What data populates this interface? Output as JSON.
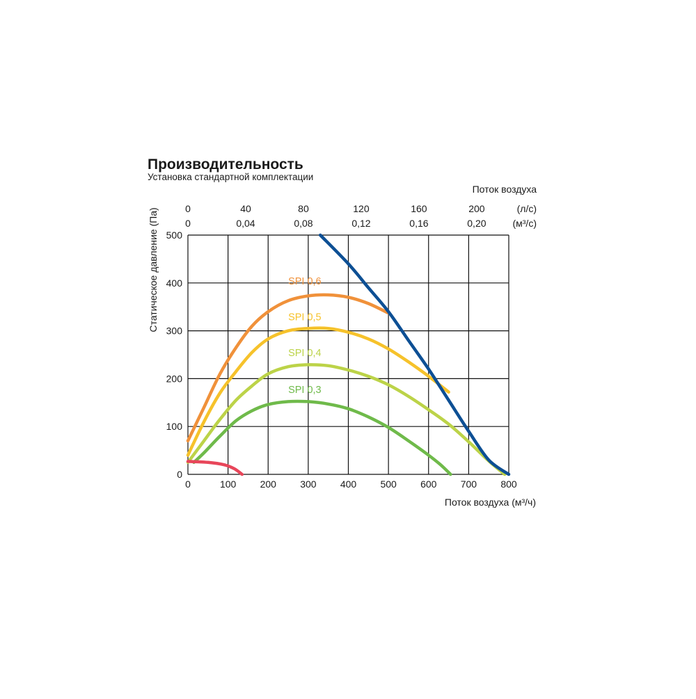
{
  "chart_data": {
    "type": "line",
    "title": "Производительность",
    "subtitle": "Установка стандартной комплектации",
    "xlabel": "Поток воздуха (м³/ч)",
    "ylabel": "Статическое давление (Па)",
    "top_axis_title": "Поток воздуха",
    "x_ticks": [
      "0",
      "100",
      "200",
      "300",
      "400",
      "500",
      "600",
      "700",
      "800"
    ],
    "y_ticks": [
      "0",
      "100",
      "200",
      "300",
      "400",
      "500"
    ],
    "xlim": [
      0,
      800
    ],
    "ylim": [
      0,
      500
    ],
    "top_axis_ls": {
      "unit": "(л/с)",
      "ticks": [
        {
          "label": "0",
          "value": 0
        },
        {
          "label": "40",
          "value": 40
        },
        {
          "label": "80",
          "value": 80
        },
        {
          "label": "120",
          "value": 120
        },
        {
          "label": "160",
          "value": 160
        },
        {
          "label": "200",
          "value": 200
        }
      ]
    },
    "top_axis_m3s": {
      "unit": "(м³/с)",
      "ticks": [
        {
          "label": "0",
          "value": 0
        },
        {
          "label": "0,04",
          "value": 0.04
        },
        {
          "label": "0,08",
          "value": 0.08
        },
        {
          "label": "0,12",
          "value": 0.12
        },
        {
          "label": "0,16",
          "value": 0.16
        },
        {
          "label": "0,20",
          "value": 0.2
        }
      ]
    },
    "grid": true,
    "series": [
      {
        "name": "",
        "color": "#0d4f94",
        "points": [
          [
            330,
            500
          ],
          [
            400,
            440
          ],
          [
            450,
            390
          ],
          [
            500,
            340
          ],
          [
            550,
            280
          ],
          [
            600,
            220
          ],
          [
            650,
            155
          ],
          [
            700,
            90
          ],
          [
            750,
            30
          ],
          [
            800,
            0
          ]
        ]
      },
      {
        "name": "",
        "color": "#e8465a",
        "points": [
          [
            0,
            27
          ],
          [
            50,
            25
          ],
          [
            90,
            20
          ],
          [
            115,
            12
          ],
          [
            135,
            0
          ]
        ]
      },
      {
        "name": "SPI 0,6",
        "color": "#f0913a",
        "label_at": [
          250,
          397
        ],
        "points": [
          [
            0,
            70
          ],
          [
            40,
            140
          ],
          [
            80,
            210
          ],
          [
            120,
            265
          ],
          [
            160,
            310
          ],
          [
            200,
            340
          ],
          [
            250,
            363
          ],
          [
            300,
            373
          ],
          [
            350,
            375
          ],
          [
            400,
            370
          ],
          [
            450,
            357
          ],
          [
            500,
            337
          ]
        ]
      },
      {
        "name": "SPI 0,5",
        "color": "#f6c22b",
        "label_at": [
          250,
          322
        ],
        "points": [
          [
            0,
            40
          ],
          [
            40,
            110
          ],
          [
            80,
            170
          ],
          [
            120,
            215
          ],
          [
            160,
            255
          ],
          [
            200,
            283
          ],
          [
            250,
            300
          ],
          [
            300,
            305
          ],
          [
            350,
            305
          ],
          [
            400,
            297
          ],
          [
            450,
            283
          ],
          [
            500,
            262
          ],
          [
            550,
            235
          ],
          [
            600,
            205
          ],
          [
            650,
            172
          ]
        ]
      },
      {
        "name": "SPI 0,4",
        "color": "#bcd348",
        "label_at": [
          250,
          247
        ],
        "points": [
          [
            0,
            25
          ],
          [
            40,
            70
          ],
          [
            80,
            115
          ],
          [
            120,
            155
          ],
          [
            160,
            185
          ],
          [
            200,
            210
          ],
          [
            250,
            225
          ],
          [
            300,
            229
          ],
          [
            350,
            227
          ],
          [
            400,
            218
          ],
          [
            450,
            205
          ],
          [
            500,
            187
          ],
          [
            550,
            163
          ],
          [
            600,
            135
          ],
          [
            650,
            105
          ],
          [
            700,
            68
          ],
          [
            750,
            28
          ],
          [
            790,
            0
          ]
        ]
      },
      {
        "name": "SPI 0,3",
        "color": "#6fba4a",
        "label_at": [
          250,
          170
        ],
        "points": [
          [
            15,
            25
          ],
          [
            40,
            45
          ],
          [
            80,
            80
          ],
          [
            120,
            112
          ],
          [
            160,
            133
          ],
          [
            200,
            146
          ],
          [
            250,
            152
          ],
          [
            300,
            152
          ],
          [
            350,
            147
          ],
          [
            400,
            137
          ],
          [
            450,
            120
          ],
          [
            500,
            98
          ],
          [
            550,
            70
          ],
          [
            600,
            40
          ],
          [
            630,
            20
          ],
          [
            655,
            0
          ]
        ]
      }
    ]
  }
}
